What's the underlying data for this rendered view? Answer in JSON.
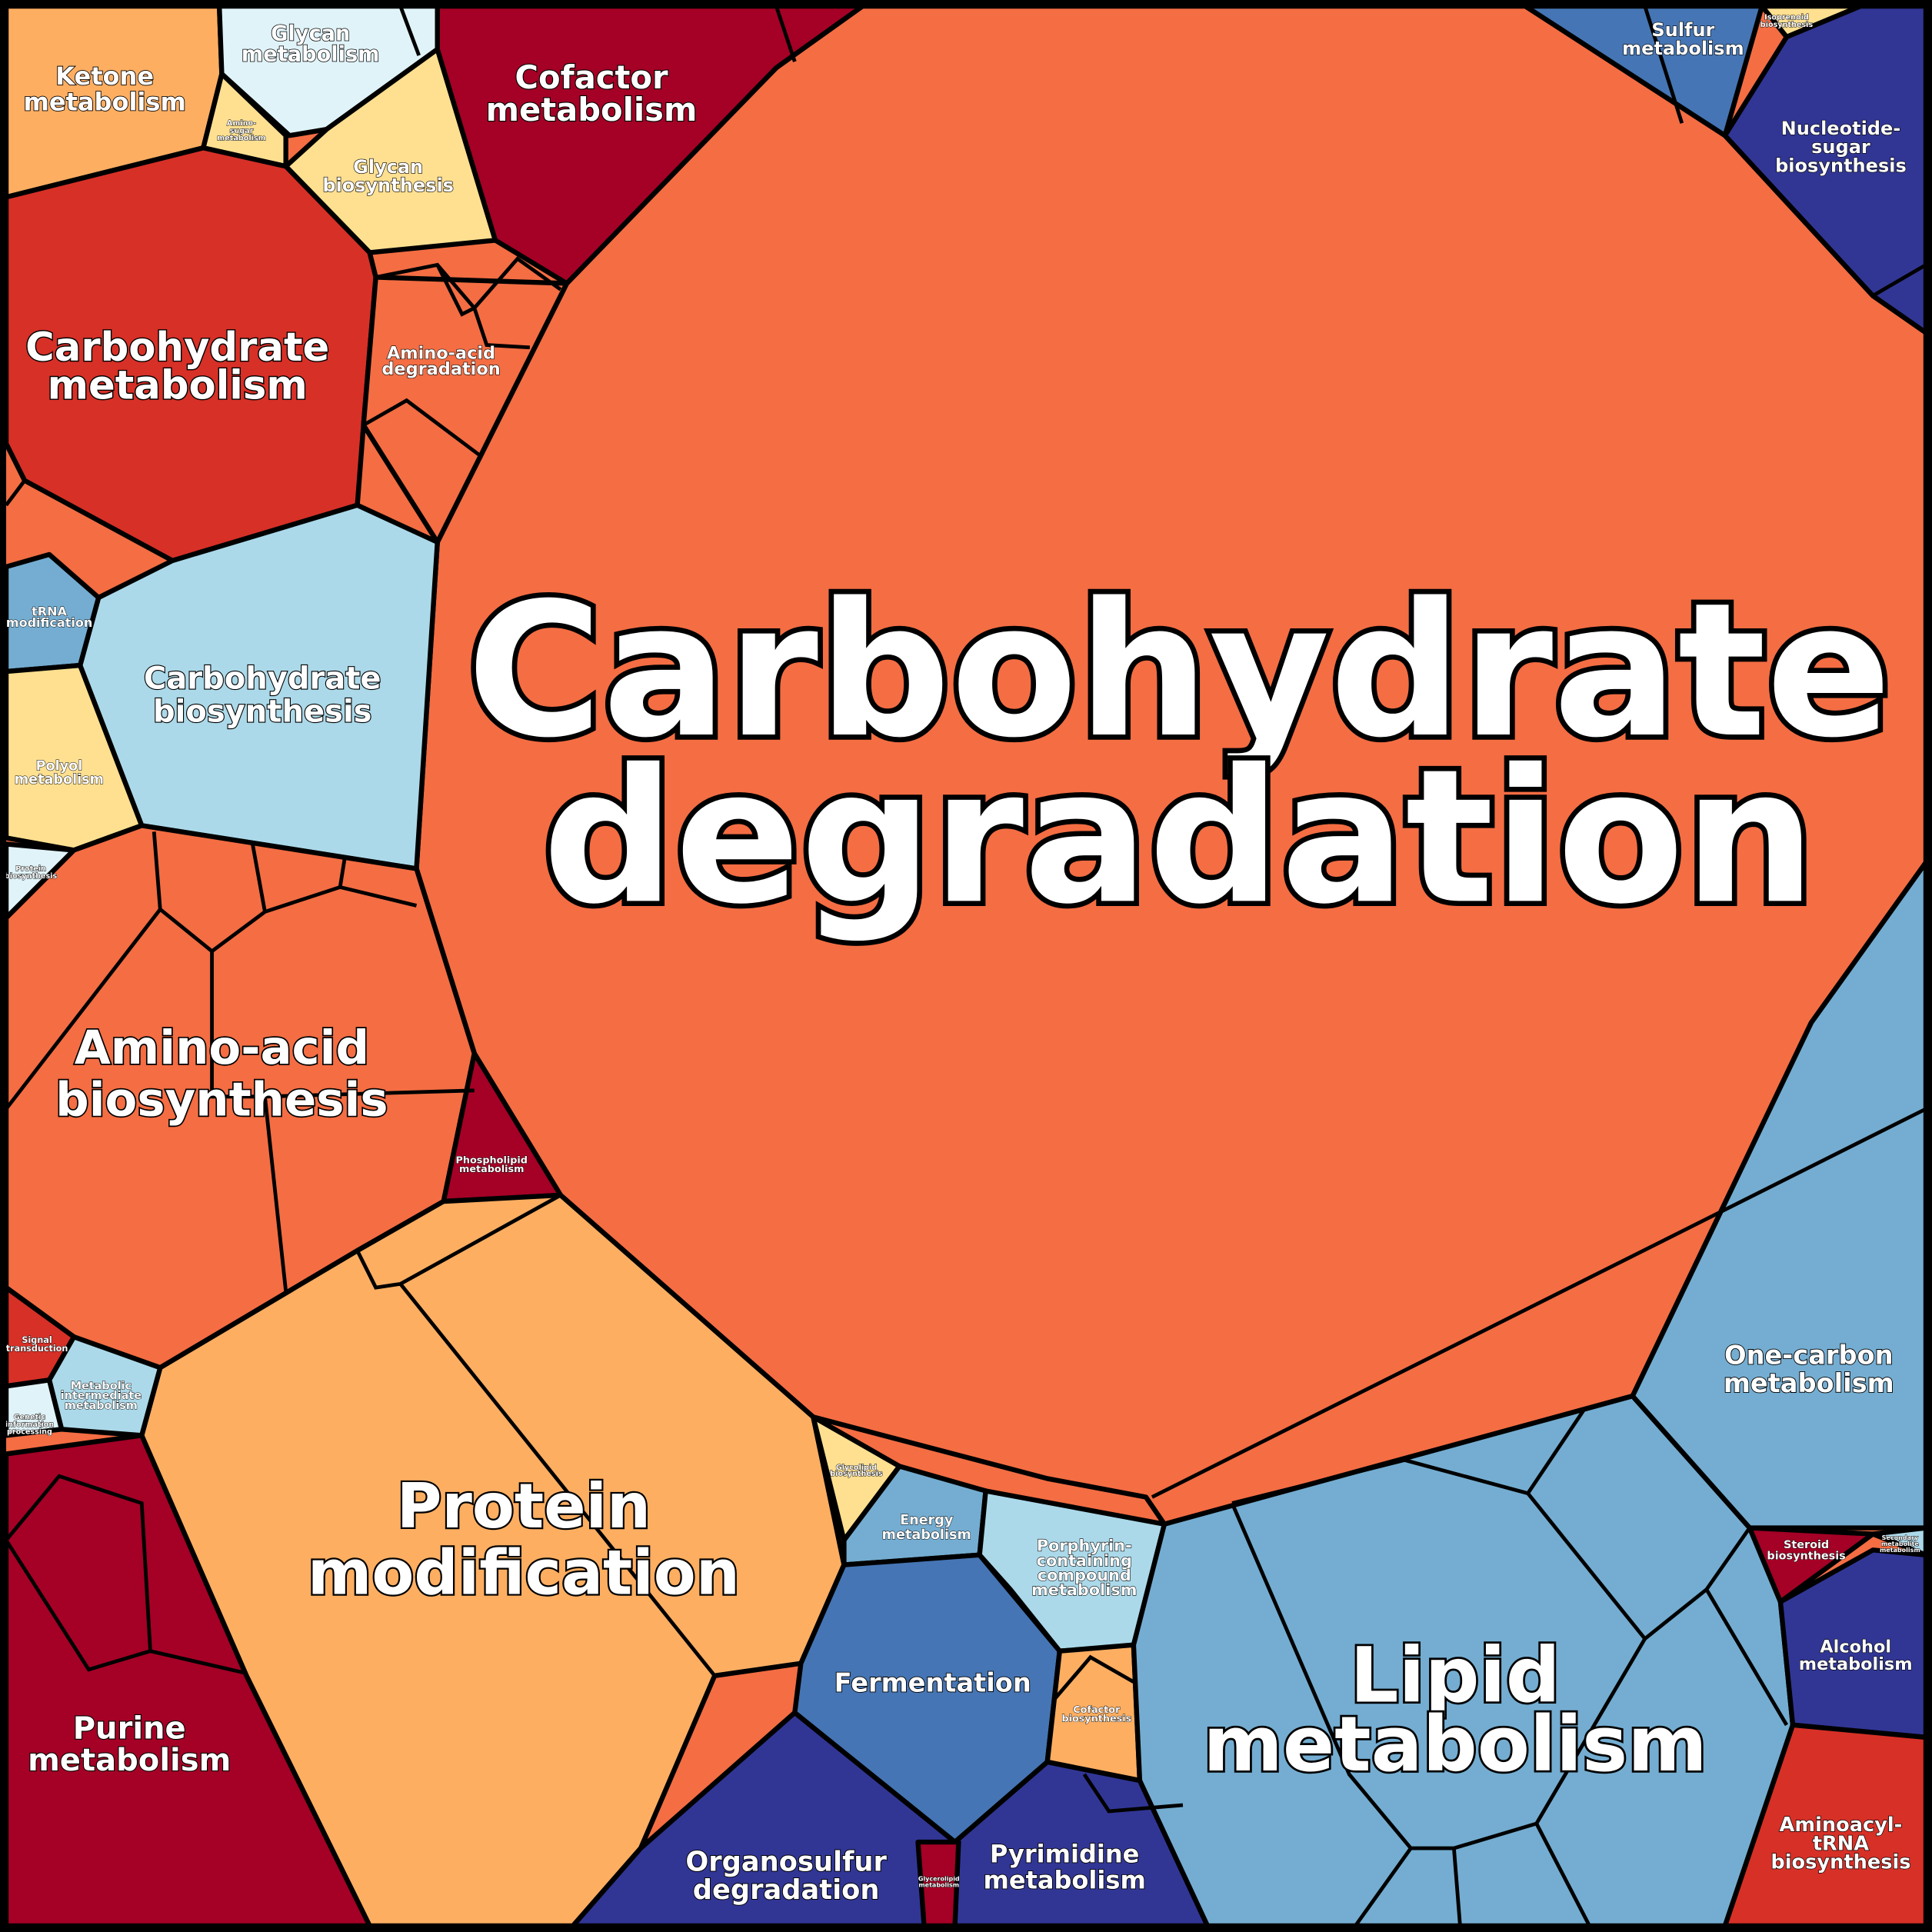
{
  "cells": [
    {
      "lines": [
        "Carbohydrate",
        "degradation"
      ],
      "color": "#f46d43"
    },
    {
      "lines": [
        "Ketone",
        "metabolism"
      ],
      "color": "#fdae61"
    },
    {
      "lines": [
        "Glycan",
        "metabolism"
      ],
      "color": "#e0f3f8"
    },
    {
      "lines": [
        "Glycan",
        "biosynthesis"
      ],
      "color": "#fee090"
    },
    {
      "lines": [
        "Amino-",
        "sugar",
        "metabolism"
      ],
      "color": "#fee090"
    },
    {
      "lines": [
        "Cofactor",
        "metabolism"
      ],
      "color": "#a50026"
    },
    {
      "lines": [
        "Carbohydrate",
        "metabolism"
      ],
      "color": "#d73027"
    },
    {
      "lines": [
        "Amino-acid",
        "degradation"
      ],
      "color": "#f46d43"
    },
    {
      "lines": [
        "Carbohydrate",
        "biosynthesis"
      ],
      "color": "#abd9e9"
    },
    {
      "lines": [
        "tRNA",
        "modification"
      ],
      "color": "#74add1"
    },
    {
      "lines": [
        "Polyol",
        "metabolism"
      ],
      "color": "#fee090"
    },
    {
      "lines": [
        "Protein",
        "biosynthesis"
      ],
      "color": "#e0f3f8"
    },
    {
      "lines": [
        "Amino-acid",
        "biosynthesis"
      ],
      "color": "#f46d43"
    },
    {
      "lines": [
        "Phospholipid",
        "metabolism"
      ],
      "color": "#a50026"
    },
    {
      "lines": [
        "Protein",
        "modification"
      ],
      "color": "#fdae61"
    },
    {
      "lines": [
        "Glycolipid",
        "biosynthesis"
      ],
      "color": "#fee090"
    },
    {
      "lines": [
        "Energy",
        "metabolism"
      ],
      "color": "#74add1"
    },
    {
      "lines": [
        "Porphyrin-",
        "containing",
        "compound",
        "metabolism"
      ],
      "color": "#abd9e9"
    },
    {
      "lines": [
        "Fermentation"
      ],
      "color": "#4575b4"
    },
    {
      "lines": [
        "Pyrimidine",
        "metabolism"
      ],
      "color": "#313695"
    },
    {
      "lines": [
        "Organosulfur",
        "degradation"
      ],
      "color": "#313695"
    },
    {
      "lines": [
        "Glycerolipid",
        "metabolism"
      ],
      "color": "#a50026"
    },
    {
      "lines": [
        "Cofactor",
        "biosynthesis"
      ],
      "color": "#fdae61"
    },
    {
      "lines": [
        "Lipid",
        "metabolism"
      ],
      "color": "#74add1"
    },
    {
      "lines": [
        "One-carbon",
        "metabolism"
      ],
      "color": "#74add1"
    },
    {
      "lines": [
        "Steroid",
        "biosynthesis"
      ],
      "color": "#a50026"
    },
    {
      "lines": [
        "Secondary",
        "metabolite",
        "metabolism"
      ],
      "color": "#abd9e9"
    },
    {
      "lines": [
        "Alcohol",
        "metabolism"
      ],
      "color": "#313695"
    },
    {
      "lines": [
        "Aminoacyl-",
        "tRNA",
        "biosynthesis"
      ],
      "color": "#d73027"
    },
    {
      "lines": [
        "Sulfur",
        "metabolism"
      ],
      "color": "#4575b4"
    },
    {
      "lines": [
        "Isoprenoid",
        "biosynthesis"
      ],
      "color": "#fee090"
    },
    {
      "lines": [
        "Nucleotide-",
        "sugar",
        "biosynthesis"
      ],
      "color": "#313695"
    },
    {
      "lines": [
        "Purine",
        "metabolism"
      ],
      "color": "#a50026"
    },
    {
      "lines": [
        "Signal",
        "transduction"
      ],
      "color": "#d73027"
    },
    {
      "lines": [
        "Metabolic",
        "intermediate",
        "metabolism"
      ],
      "color": "#abd9e9"
    },
    {
      "lines": [
        "Genetic",
        "information",
        "processing"
      ],
      "color": "#e0f3f8"
    }
  ]
}
